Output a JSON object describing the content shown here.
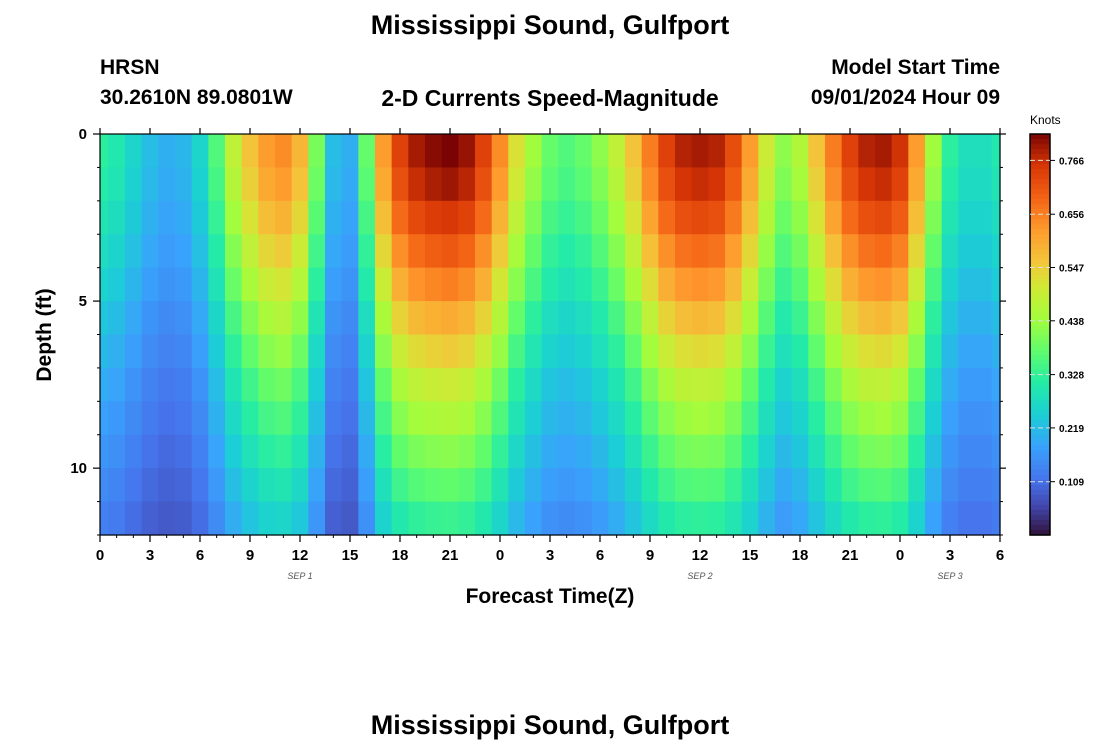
{
  "header": {
    "title": "Mississippi Sound, Gulfport",
    "station": "HRSN",
    "coords": "30.2610N  89.0801W",
    "subtitle": "2-D Currents Speed-Magnitude",
    "model_start_label": "Model Start Time",
    "model_start_value": "09/01/2024 Hour 09"
  },
  "footer": {
    "title": "Mississippi Sound, Gulfport"
  },
  "chart_data": {
    "type": "heatmap",
    "xlabel": "Forecast Time(Z)",
    "ylabel": "Depth (ft)",
    "x_tick_labels": [
      "0",
      "3",
      "6",
      "9",
      "12",
      "15",
      "18",
      "21",
      "0",
      "3",
      "6",
      "9",
      "12",
      "15",
      "18",
      "21",
      "0",
      "3",
      "6"
    ],
    "y_tick_labels": [
      "0",
      "5",
      "10"
    ],
    "y_ticks": [
      0,
      5,
      10
    ],
    "ylim": [
      0,
      12
    ],
    "date_labels": [
      {
        "text": "SEP 1",
        "hour": 12
      },
      {
        "text": "SEP 2",
        "hour": 36
      },
      {
        "text": "SEP 3",
        "hour": 51
      }
    ],
    "colorbar": {
      "label": "Knots",
      "tick_labels": [
        "0.766",
        "0.656",
        "0.547",
        "0.438",
        "0.328",
        "0.219",
        "0.109"
      ],
      "ticks": [
        0.766,
        0.656,
        0.547,
        0.438,
        0.328,
        0.219,
        0.109
      ],
      "range": [
        0.0,
        0.82
      ]
    },
    "grid": false,
    "x_hours": [
      0,
      1,
      2,
      3,
      4,
      5,
      6,
      7,
      8,
      9,
      10,
      11,
      12,
      13,
      14,
      15,
      16,
      17,
      18,
      19,
      20,
      21,
      22,
      23,
      24,
      25,
      26,
      27,
      28,
      29,
      30,
      31,
      32,
      33,
      34,
      35,
      36,
      37,
      38,
      39,
      40,
      41,
      42,
      43,
      44,
      45,
      46,
      47,
      48,
      49,
      50,
      51,
      52,
      53,
      54
    ],
    "depth_layers_ft": [
      0.5,
      1.5,
      2.5,
      3.5,
      4.5,
      5.5,
      6.5,
      7.5,
      8.5,
      9.5,
      10.5,
      11.5
    ],
    "surface_speed_knots": [
      0.32,
      0.3,
      0.26,
      0.22,
      0.2,
      0.21,
      0.26,
      0.36,
      0.48,
      0.56,
      0.62,
      0.64,
      0.58,
      0.4,
      0.22,
      0.2,
      0.38,
      0.62,
      0.74,
      0.79,
      0.81,
      0.82,
      0.8,
      0.74,
      0.64,
      0.52,
      0.44,
      0.38,
      0.36,
      0.38,
      0.42,
      0.48,
      0.56,
      0.66,
      0.74,
      0.78,
      0.79,
      0.78,
      0.72,
      0.62,
      0.5,
      0.42,
      0.46,
      0.56,
      0.66,
      0.74,
      0.78,
      0.79,
      0.76,
      0.62,
      0.44,
      0.32,
      0.28,
      0.28,
      0.3
    ],
    "depth_factor": [
      1.0,
      0.97,
      0.92,
      0.86,
      0.8,
      0.73,
      0.67,
      0.61,
      0.56,
      0.51,
      0.46,
      0.41
    ]
  }
}
